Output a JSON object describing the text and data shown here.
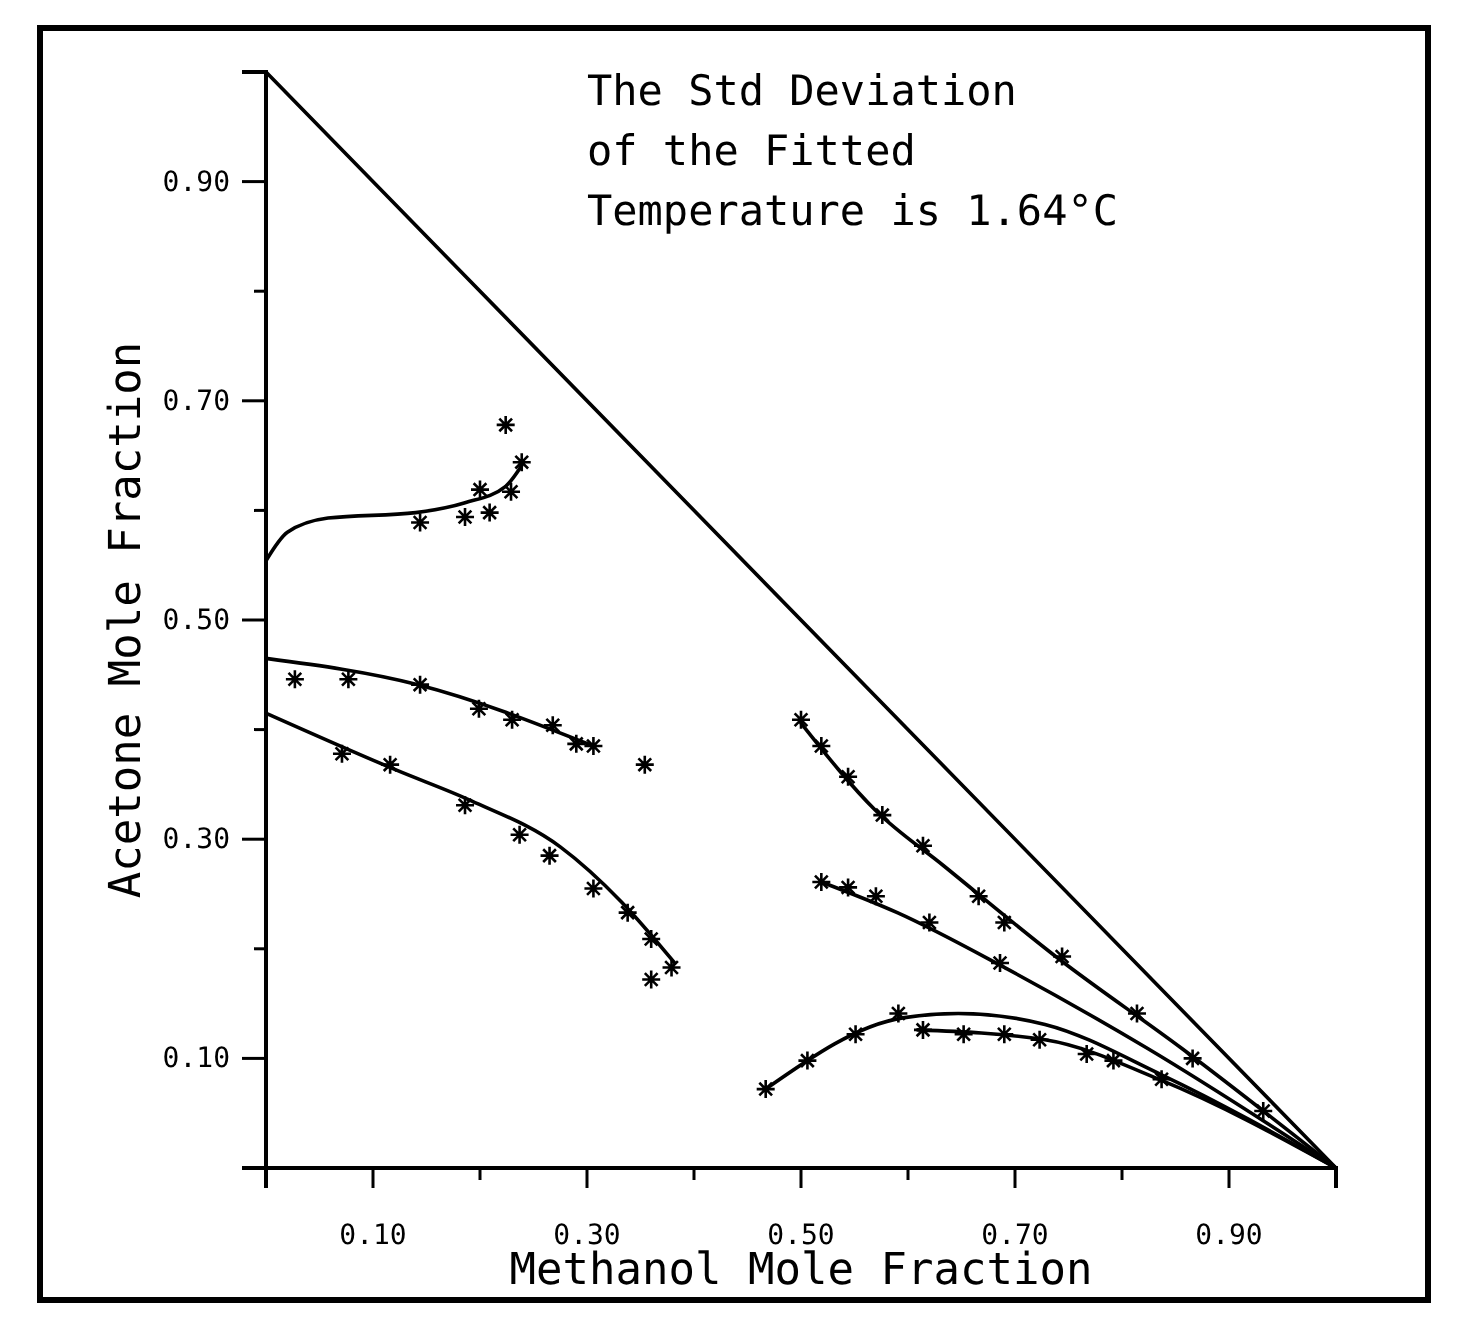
{
  "chart_data": {
    "type": "scatter",
    "xlabel": "Methanol Mole Fraction",
    "ylabel": "Acetone Mole Fraction",
    "annotations": [
      "The Std Deviation\nof the Fitted\nTemperature is 1.64°C"
    ],
    "xlim": [
      0,
      1
    ],
    "ylim": [
      0,
      1
    ],
    "xticks": [
      {
        "value": 0.1,
        "label": "0.10"
      },
      {
        "value": 0.2,
        "label": null
      },
      {
        "value": 0.3,
        "label": "0.30"
      },
      {
        "value": 0.4,
        "label": null
      },
      {
        "value": 0.5,
        "label": "0.50"
      },
      {
        "value": 0.6,
        "label": null
      },
      {
        "value": 0.7,
        "label": "0.70"
      },
      {
        "value": 0.8,
        "label": null
      },
      {
        "value": 0.9,
        "label": "0.90"
      }
    ],
    "yticks": [
      {
        "value": 0.1,
        "label": "0.10"
      },
      {
        "value": 0.2,
        "label": null
      },
      {
        "value": 0.3,
        "label": "0.30"
      },
      {
        "value": 0.4,
        "label": null
      },
      {
        "value": 0.5,
        "label": "0.50"
      },
      {
        "value": 0.6,
        "label": null
      },
      {
        "value": 0.7,
        "label": "0.70"
      },
      {
        "value": 0.8,
        "label": null
      },
      {
        "value": 0.9,
        "label": "0.90"
      }
    ],
    "grid": false,
    "series": [
      {
        "marker": "cross",
        "color": "#000000",
        "x": [
          0.144,
          0.186,
          0.209,
          0.2,
          0.229,
          0.239,
          0.224,
          0.027,
          0.077,
          0.144,
          0.199,
          0.23,
          0.268,
          0.29,
          0.306,
          0.354,
          0.071,
          0.116,
          0.186,
          0.237,
          0.265,
          0.306,
          0.338,
          0.36,
          0.379,
          0.36,
          0.5,
          0.519,
          0.544,
          0.576,
          0.614,
          0.666,
          0.69,
          0.744,
          0.814,
          0.866,
          0.519,
          0.544,
          0.57,
          0.62,
          0.686,
          0.932,
          0.467,
          0.506,
          0.551,
          0.591,
          0.614,
          0.652,
          0.69,
          0.723,
          0.767,
          0.792,
          0.837
        ],
        "values": [
          0.589,
          0.594,
          0.598,
          0.619,
          0.617,
          0.644,
          0.678,
          0.446,
          0.446,
          0.441,
          0.419,
          0.409,
          0.404,
          0.387,
          0.385,
          0.368,
          0.378,
          0.368,
          0.331,
          0.304,
          0.285,
          0.255,
          0.233,
          0.209,
          0.183,
          0.172,
          0.409,
          0.385,
          0.357,
          0.322,
          0.294,
          0.248,
          0.224,
          0.193,
          0.141,
          0.1,
          0.261,
          0.256,
          0.248,
          0.224,
          0.187,
          0.052,
          0.072,
          0.098,
          0.122,
          0.141,
          0.126,
          0.122,
          0.122,
          0.117,
          0.104,
          0.098,
          0.081
        ]
      },
      {
        "type": "line",
        "color": "#000000",
        "x": [
          0,
          1
        ],
        "values": [
          1,
          0
        ]
      },
      {
        "type": "line",
        "color": "#000000",
        "x": [
          0,
          0.02,
          0.058,
          0.14,
          0.186,
          0.224,
          0.239
        ],
        "values": [
          0.554,
          0.58,
          0.593,
          0.598,
          0.607,
          0.622,
          0.641
        ]
      },
      {
        "type": "line",
        "color": "#000000",
        "x": [
          0,
          0.142,
          0.306
        ],
        "values": [
          0.465,
          0.441,
          0.385
        ]
      },
      {
        "type": "line",
        "color": "#000000",
        "x": [
          0,
          0.122,
          0.192,
          0.275,
          0.332,
          0.382
        ],
        "values": [
          0.415,
          0.363,
          0.335,
          0.293,
          0.243,
          0.187
        ]
      },
      {
        "type": "line",
        "color": "#000000",
        "x": [
          0.5,
          0.57,
          0.633,
          0.742,
          0.856,
          1
        ],
        "values": [
          0.406,
          0.326,
          0.276,
          0.19,
          0.109,
          0
        ]
      },
      {
        "type": "line",
        "color": "#000000",
        "x": [
          0.519,
          0.59,
          0.69,
          0.824,
          1
        ],
        "values": [
          0.261,
          0.233,
          0.183,
          0.109,
          0
        ]
      },
      {
        "type": "line",
        "color": "#000000",
        "x": [
          0.467,
          0.595,
          0.647,
          0.728,
          0.837,
          1
        ],
        "values": [
          0.072,
          0.137,
          0.141,
          0.131,
          0.085,
          0
        ]
      },
      {
        "type": "line",
        "color": "#000000",
        "x": [
          0.609,
          0.728,
          0.837,
          1
        ],
        "values": [
          0.126,
          0.117,
          0.08,
          0
        ]
      }
    ]
  }
}
